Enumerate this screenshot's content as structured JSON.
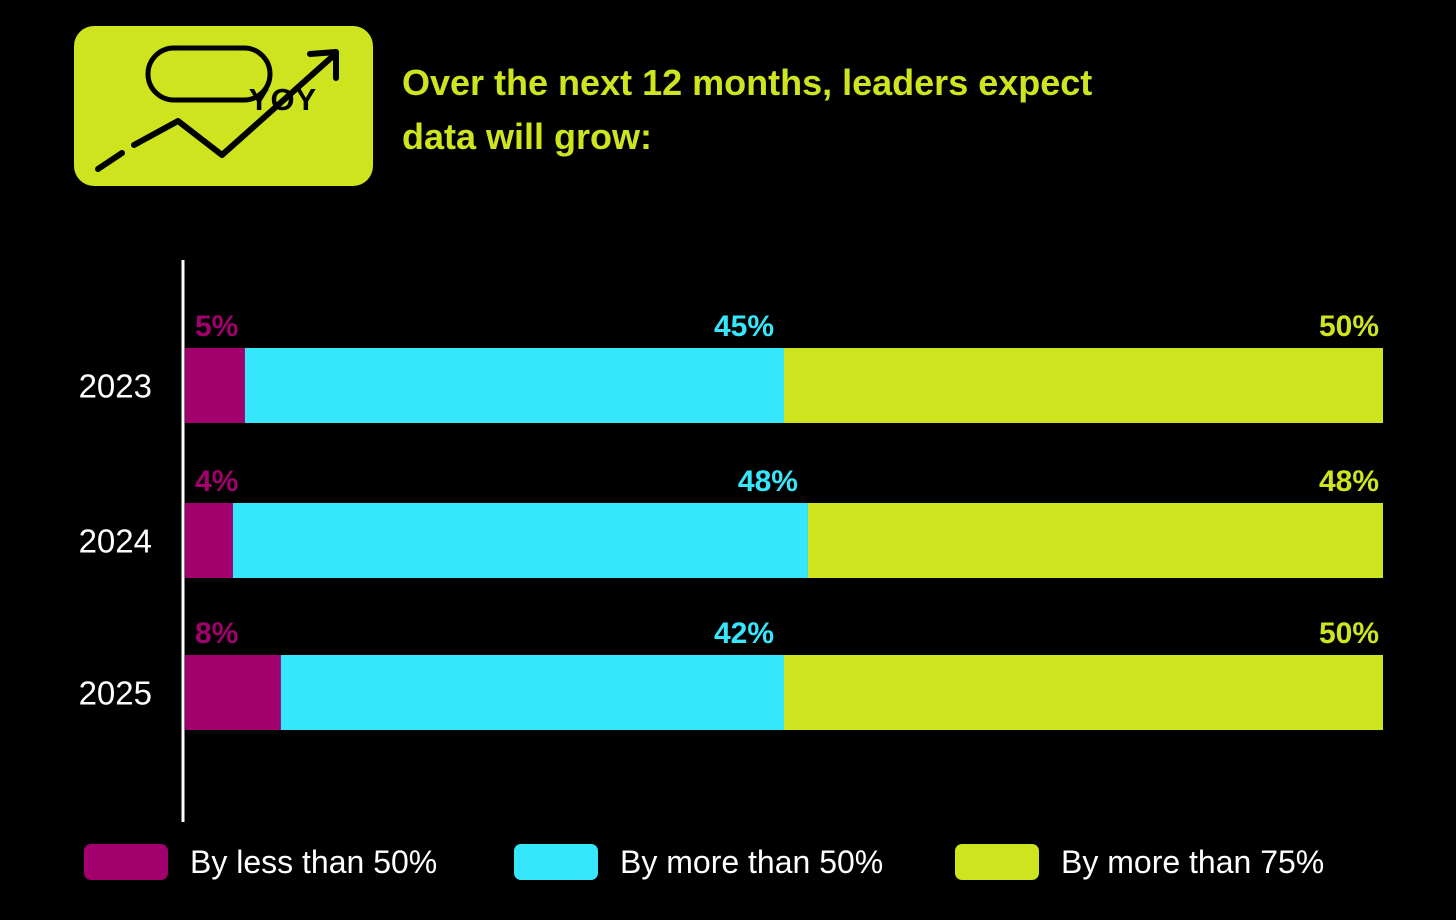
{
  "header": {
    "badge_text": "YOY",
    "badge_icon": "trending-up-arrow-icon",
    "title_line1": "Over the next 12 months, leaders expect",
    "title_line2": "data will grow:"
  },
  "colors": {
    "background": "#000000",
    "accent": "#cde41f",
    "less_than_50": "#a2006d",
    "more_than_50": "#36e7fb",
    "more_than_75": "#cde41f",
    "axis": "#ffffff"
  },
  "chart_data": {
    "type": "bar",
    "orientation": "horizontal",
    "stacked": true,
    "categories": [
      "2023",
      "2024",
      "2025"
    ],
    "series": [
      {
        "name": "By less than 50%",
        "values": [
          5,
          4,
          8
        ],
        "labels": [
          "5%",
          "4%",
          "8%"
        ]
      },
      {
        "name": "By more than 50%",
        "values": [
          45,
          48,
          42
        ],
        "labels": [
          "45%",
          "48%",
          "42%"
        ]
      },
      {
        "name": "By more than 75%",
        "values": [
          50,
          48,
          50
        ],
        "labels": [
          "50%",
          "48%",
          "50%"
        ]
      }
    ],
    "xlim": [
      0,
      100
    ],
    "grid": false,
    "legend_position": "bottom"
  }
}
